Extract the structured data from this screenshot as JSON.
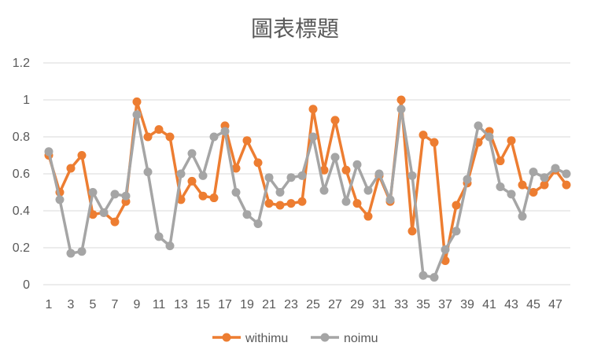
{
  "chart_data": {
    "type": "line",
    "title": "圖表標題",
    "xlabel": "",
    "ylabel": "",
    "ylim": [
      0,
      1.2
    ],
    "yticks": [
      "0",
      "0.2",
      "0.4",
      "0.6",
      "0.8",
      "1",
      "1.2"
    ],
    "xticks": [
      "1",
      "3",
      "5",
      "7",
      "9",
      "11",
      "13",
      "15",
      "17",
      "19",
      "21",
      "23",
      "25",
      "27",
      "29",
      "31",
      "33",
      "35",
      "37",
      "39",
      "41",
      "43",
      "45",
      "47"
    ],
    "x": [
      1,
      2,
      3,
      4,
      5,
      6,
      7,
      8,
      9,
      10,
      11,
      12,
      13,
      14,
      15,
      16,
      17,
      18,
      19,
      20,
      21,
      22,
      23,
      24,
      25,
      26,
      27,
      28,
      29,
      30,
      31,
      32,
      33,
      34,
      35,
      36,
      37,
      38,
      39,
      40,
      41,
      42,
      43,
      44,
      45,
      46,
      47,
      48
    ],
    "grid": true,
    "legend_position": "bottom",
    "series": [
      {
        "name": "withimu",
        "color": "#ed7d31",
        "values": [
          0.7,
          0.5,
          0.63,
          0.7,
          0.38,
          0.39,
          0.34,
          0.45,
          0.99,
          0.8,
          0.84,
          0.8,
          0.46,
          0.56,
          0.48,
          0.47,
          0.86,
          0.63,
          0.78,
          0.66,
          0.44,
          0.43,
          0.44,
          0.45,
          0.95,
          0.62,
          0.89,
          0.62,
          0.44,
          0.37,
          0.59,
          0.45,
          1.0,
          0.29,
          0.81,
          0.77,
          0.13,
          0.43,
          0.55,
          0.77,
          0.83,
          0.67,
          0.78,
          0.54,
          0.5,
          0.54,
          0.62,
          0.54
        ]
      },
      {
        "name": "noimu",
        "color": "#a5a5a5",
        "values": [
          0.72,
          0.46,
          0.17,
          0.18,
          0.5,
          0.39,
          0.49,
          0.48,
          0.92,
          0.61,
          0.26,
          0.21,
          0.6,
          0.71,
          0.59,
          0.8,
          0.83,
          0.5,
          0.38,
          0.33,
          0.58,
          0.5,
          0.58,
          0.59,
          0.8,
          0.51,
          0.69,
          0.45,
          0.65,
          0.51,
          0.6,
          0.46,
          0.95,
          0.59,
          0.05,
          0.04,
          0.19,
          0.29,
          0.57,
          0.86,
          0.8,
          0.53,
          0.49,
          0.37,
          0.61,
          0.58,
          0.63,
          0.6
        ]
      }
    ]
  }
}
